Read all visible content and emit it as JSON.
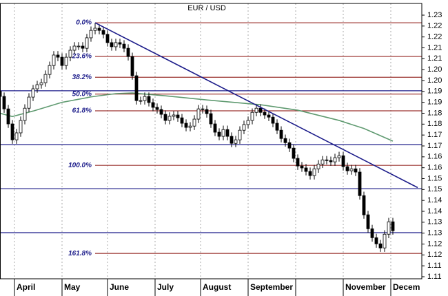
{
  "chart_data": {
    "type": "candlestick",
    "title": "EUR / USD",
    "x": [
      0,
      1,
      2,
      3,
      4,
      5,
      6,
      7,
      8,
      9,
      10,
      11,
      12,
      13,
      14,
      15,
      16,
      17,
      18,
      19,
      20,
      21,
      22,
      23,
      24,
      25,
      26,
      27,
      28,
      29,
      30,
      31,
      32,
      33,
      34,
      35,
      36,
      37,
      38,
      39,
      40,
      41,
      42,
      43,
      44,
      45,
      46,
      47,
      48,
      49,
      50,
      51,
      52,
      53,
      54,
      55,
      56,
      57,
      58,
      59,
      60,
      61,
      62,
      63,
      64,
      65,
      66,
      67,
      68,
      69,
      70,
      71,
      72,
      73,
      74,
      75,
      76,
      77,
      78,
      79,
      80,
      81,
      82,
      83,
      84,
      85,
      86,
      87,
      88,
      89,
      90,
      91,
      92,
      93,
      94,
      95
    ],
    "open": [
      1.195,
      1.1927,
      1.187,
      1.1801,
      1.1728,
      1.176,
      1.1817,
      1.1873,
      1.1924,
      1.1962,
      1.1981,
      1.199,
      1.2028,
      1.2069,
      1.2117,
      1.2107,
      1.2069,
      1.2107,
      1.2139,
      1.2158,
      1.2158,
      1.2148,
      1.2196,
      1.223,
      1.224,
      1.223,
      1.2212,
      1.2174,
      1.2155,
      1.2174,
      1.2167,
      1.2148,
      1.211,
      1.2022,
      1.1908,
      1.1908,
      1.1927,
      1.1899,
      1.1877,
      1.1867,
      1.1845,
      1.1817,
      1.1836,
      1.1842,
      1.1829,
      1.1804,
      1.1785,
      1.1791,
      1.1823,
      1.187,
      1.1867,
      1.1848,
      1.1801,
      1.1763,
      1.1744,
      1.1775,
      1.1744,
      1.1712,
      1.1728,
      1.1772,
      1.1798,
      1.1817,
      1.1854,
      1.1873,
      1.1854,
      1.1842,
      1.1832,
      1.1804,
      1.1772,
      1.1734,
      1.1715,
      1.169,
      1.1643,
      1.1608,
      1.1599,
      1.1583,
      1.1564,
      1.1595,
      1.1617,
      1.1636,
      1.1633,
      1.1627,
      1.1646,
      1.1655,
      1.1605,
      1.1586,
      1.1595,
      1.158,
      1.1472,
      1.1384,
      1.132,
      1.1279,
      1.1251,
      1.1232,
      1.1295,
      1.1352
    ],
    "high": [
      1.1968,
      1.1945,
      1.1888,
      1.1819,
      1.1778,
      1.1835,
      1.1891,
      1.1942,
      1.198,
      1.1999,
      1.2008,
      1.2046,
      1.2087,
      1.2135,
      1.2135,
      1.2125,
      1.2125,
      1.2157,
      1.2176,
      1.2176,
      1.2176,
      1.2214,
      1.2248,
      1.2265,
      1.2258,
      1.2248,
      1.223,
      1.2192,
      1.2192,
      1.2192,
      1.2185,
      1.2166,
      1.2128,
      1.204,
      1.1926,
      1.1945,
      1.1945,
      1.1917,
      1.1895,
      1.1885,
      1.1863,
      1.1854,
      1.186,
      1.186,
      1.1847,
      1.1822,
      1.1809,
      1.1841,
      1.1888,
      1.1888,
      1.1885,
      1.1866,
      1.1819,
      1.1781,
      1.1793,
      1.1793,
      1.1762,
      1.1746,
      1.179,
      1.1816,
      1.1835,
      1.1872,
      1.1891,
      1.1891,
      1.1872,
      1.186,
      1.185,
      1.1822,
      1.179,
      1.1752,
      1.1733,
      1.1708,
      1.1661,
      1.1626,
      1.1617,
      1.1601,
      1.1613,
      1.1635,
      1.1654,
      1.1654,
      1.1651,
      1.1664,
      1.1673,
      1.1673,
      1.1623,
      1.1613,
      1.1613,
      1.1598,
      1.149,
      1.1402,
      1.1338,
      1.1297,
      1.1269,
      1.1313,
      1.137,
      1.137
    ],
    "low": [
      1.1909,
      1.1852,
      1.1783,
      1.171,
      1.171,
      1.1742,
      1.1799,
      1.1855,
      1.1906,
      1.1944,
      1.1963,
      1.1972,
      1.201,
      1.2051,
      1.2089,
      1.2051,
      1.2051,
      1.2089,
      1.2121,
      1.214,
      1.213,
      1.213,
      1.2178,
      1.2212,
      1.2212,
      1.2194,
      1.2156,
      1.2137,
      1.2137,
      1.2149,
      1.213,
      1.2092,
      1.2004,
      1.189,
      1.189,
      1.189,
      1.1881,
      1.1859,
      1.1849,
      1.1827,
      1.1799,
      1.1799,
      1.1818,
      1.1811,
      1.1786,
      1.1767,
      1.1767,
      1.1773,
      1.1805,
      1.1849,
      1.183,
      1.1783,
      1.1745,
      1.1726,
      1.1726,
      1.1726,
      1.1694,
      1.1694,
      1.171,
      1.1754,
      1.178,
      1.1799,
      1.1836,
      1.1836,
      1.1824,
      1.1814,
      1.1786,
      1.1754,
      1.1716,
      1.1697,
      1.1672,
      1.1625,
      1.159,
      1.1581,
      1.1565,
      1.1546,
      1.1546,
      1.1577,
      1.1599,
      1.1615,
      1.1609,
      1.1609,
      1.1628,
      1.1587,
      1.1568,
      1.1568,
      1.1562,
      1.1454,
      1.1366,
      1.1302,
      1.1261,
      1.1233,
      1.1214,
      1.1214,
      1.1277,
      1.1293
    ],
    "close": [
      1.1927,
      1.187,
      1.1801,
      1.1728,
      1.176,
      1.1817,
      1.1873,
      1.1924,
      1.1962,
      1.1981,
      1.199,
      1.2028,
      1.2069,
      1.2117,
      1.2107,
      1.2069,
      1.2107,
      1.2139,
      1.2158,
      1.2158,
      1.2148,
      1.2196,
      1.223,
      1.224,
      1.223,
      1.2212,
      1.2174,
      1.2155,
      1.2174,
      1.2167,
      1.2148,
      1.211,
      1.2022,
      1.1908,
      1.1908,
      1.1927,
      1.1899,
      1.1877,
      1.1867,
      1.1845,
      1.1817,
      1.1836,
      1.1842,
      1.1829,
      1.1804,
      1.1785,
      1.1791,
      1.1823,
      1.187,
      1.1867,
      1.1848,
      1.1801,
      1.1763,
      1.1744,
      1.1775,
      1.1744,
      1.1712,
      1.1728,
      1.1772,
      1.1798,
      1.1817,
      1.1854,
      1.1873,
      1.1854,
      1.1842,
      1.1832,
      1.1804,
      1.1772,
      1.1734,
      1.1715,
      1.169,
      1.1643,
      1.1608,
      1.1599,
      1.1583,
      1.1564,
      1.1595,
      1.1617,
      1.1636,
      1.1633,
      1.1627,
      1.1646,
      1.1655,
      1.1605,
      1.1586,
      1.1595,
      1.158,
      1.1472,
      1.1384,
      1.132,
      1.1279,
      1.1251,
      1.1232,
      1.1295,
      1.1352,
      1.1311
    ],
    "up_color": "#ffffff",
    "down_color": "#000000",
    "moving_average": {
      "color": "#5f9a70",
      "x": [
        0,
        3,
        8,
        15,
        22,
        28,
        32,
        40,
        50,
        63,
        72,
        82,
        88,
        95
      ],
      "values": [
        1.185,
        1.1835,
        1.186,
        1.19,
        1.1925,
        1.194,
        1.1943,
        1.193,
        1.1911,
        1.1889,
        1.1864,
        1.1817,
        1.178,
        1.1722
      ]
    },
    "trendline": {
      "color": "#1c1c8a",
      "x": [
        23,
        101
      ],
      "values": [
        1.2265,
        1.1509
      ]
    },
    "horizontal_lines": {
      "color": "#1c1c8a",
      "values": [
        1.1953,
        1.1706,
        1.1504,
        1.1302
      ]
    },
    "fibonacci": {
      "color": "#9c3530",
      "label_color": "#1c1c8a",
      "labels": [
        "0.0%",
        "23.6%",
        "38.2%",
        "50.0%",
        "61.8%",
        "100.0%",
        "161.8%"
      ],
      "values": [
        1.2265,
        1.2111,
        1.2015,
        1.1938,
        1.1861,
        1.1611,
        1.1207
      ]
    },
    "xlim": [
      0,
      102
    ],
    "xticks": [
      {
        "value": 3.5,
        "label": "April"
      },
      {
        "value": 15,
        "label": "May"
      },
      {
        "value": 26,
        "label": "June"
      },
      {
        "value": 37.5,
        "label": "July"
      },
      {
        "value": 48.5,
        "label": "August"
      },
      {
        "value": 60,
        "label": "September"
      },
      {
        "value": 71.5,
        "label": null
      },
      {
        "value": 83,
        "label": "November"
      },
      {
        "value": 94.5,
        "label": "Decem"
      }
    ],
    "ylim": [
      1.10905,
      1.23537
    ],
    "yticks": [
      1.23,
      {
        "value": 1.225,
        "label": "1.22"
      },
      1.22,
      {
        "value": 1.215,
        "label": "1.21"
      },
      1.21,
      {
        "value": 1.205,
        "label": "1.20"
      },
      {
        "value": 1.2,
        "label": "1.20"
      },
      {
        "value": 1.195,
        "label": "1.19"
      },
      1.19,
      {
        "value": 1.185,
        "label": "1.18"
      },
      1.18,
      {
        "value": 1.175,
        "label": "1.17"
      },
      1.17,
      {
        "value": 1.165,
        "label": "1.16"
      },
      1.16,
      {
        "value": 1.155,
        "label": "1.15"
      },
      1.15,
      {
        "value": 1.145,
        "label": "1.14"
      },
      1.14,
      {
        "value": 1.135,
        "label": "1.13"
      },
      1.13,
      {
        "value": 1.125,
        "label": "1.12"
      },
      1.12,
      {
        "value": 1.115,
        "label": "1.11"
      },
      1.11
    ],
    "grid": true
  }
}
